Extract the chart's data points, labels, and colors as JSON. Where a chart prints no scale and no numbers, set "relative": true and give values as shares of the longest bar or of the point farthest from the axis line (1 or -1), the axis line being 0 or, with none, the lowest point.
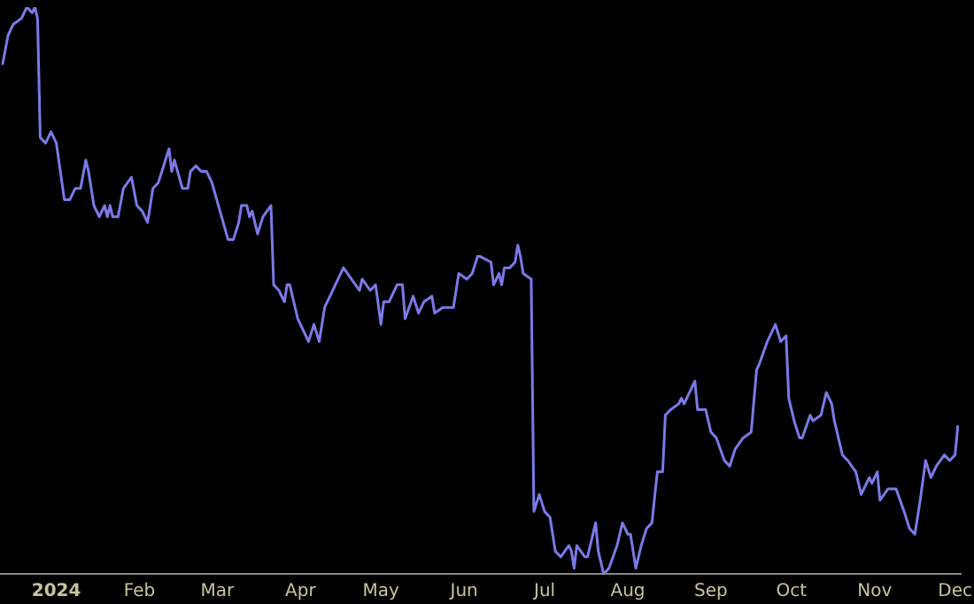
{
  "chart_data": {
    "type": "line",
    "relative": true,
    "marker": "none",
    "line_style": "solid",
    "grid": false,
    "legend": false,
    "tick_labels": "x",
    "xlim": [
      "2023-12-11",
      "2024-12-03"
    ],
    "xticks": [
      {
        "value": "2024-01-01",
        "label": "2024"
      },
      {
        "value": "2024-02-01",
        "label": "Feb"
      },
      {
        "value": "2024-03-01",
        "label": "Mar"
      },
      {
        "value": "2024-04-01",
        "label": "Apr"
      },
      {
        "value": "2024-05-01",
        "label": "May"
      },
      {
        "value": "2024-06-01",
        "label": "Jun"
      },
      {
        "value": "2024-07-01",
        "label": "Jul"
      },
      {
        "value": "2024-08-01",
        "label": "Aug"
      },
      {
        "value": "2024-09-01",
        "label": "Sep"
      },
      {
        "value": "2024-10-01",
        "label": "Oct"
      },
      {
        "value": "2024-11-01",
        "label": "Nov"
      },
      {
        "value": "2024-12-01",
        "label": "Dec"
      }
    ],
    "x": [
      "2023-12-12",
      "2023-12-14",
      "2023-12-16",
      "2023-12-19",
      "2023-12-21",
      "2023-12-23",
      "2023-12-24",
      "2023-12-25",
      "2023-12-26",
      "2023-12-28",
      "2023-12-30",
      "2024-01-01",
      "2024-01-04",
      "2024-01-06",
      "2024-01-08",
      "2024-01-10",
      "2024-01-12",
      "2024-01-13",
      "2024-01-15",
      "2024-01-17",
      "2024-01-19",
      "2024-01-20",
      "2024-01-21",
      "2024-01-22",
      "2024-01-24",
      "2024-01-26",
      "2024-01-29",
      "2024-01-31",
      "2024-02-02",
      "2024-02-04",
      "2024-02-06",
      "2024-02-08",
      "2024-02-10",
      "2024-02-12",
      "2024-02-13",
      "2024-02-14",
      "2024-02-17",
      "2024-02-19",
      "2024-02-20",
      "2024-02-22",
      "2024-02-24",
      "2024-02-26",
      "2024-02-28",
      "2024-03-02",
      "2024-03-05",
      "2024-03-07",
      "2024-03-09",
      "2024-03-10",
      "2024-03-12",
      "2024-03-13",
      "2024-03-14",
      "2024-03-16",
      "2024-03-18",
      "2024-03-21",
      "2024-03-22",
      "2024-03-24",
      "2024-03-26",
      "2024-03-27",
      "2024-03-28",
      "2024-03-31",
      "2024-04-04",
      "2024-04-06",
      "2024-04-08",
      "2024-04-10",
      "2024-04-12",
      "2024-04-14",
      "2024-04-17",
      "2024-04-20",
      "2024-04-23",
      "2024-04-24",
      "2024-04-27",
      "2024-04-29",
      "2024-05-01",
      "2024-05-02",
      "2024-05-04",
      "2024-05-07",
      "2024-05-09",
      "2024-05-10",
      "2024-05-13",
      "2024-05-15",
      "2024-05-17",
      "2024-05-20",
      "2024-05-21",
      "2024-05-24",
      "2024-05-28",
      "2024-05-30",
      "2024-06-02",
      "2024-06-04",
      "2024-06-06",
      "2024-06-07",
      "2024-06-11",
      "2024-06-12",
      "2024-06-14",
      "2024-06-15",
      "2024-06-16",
      "2024-06-18",
      "2024-06-20",
      "2024-06-21",
      "2024-06-22",
      "2024-06-23",
      "2024-06-26",
      "2024-06-27",
      "2024-06-29",
      "2024-07-01",
      "2024-07-03",
      "2024-07-05",
      "2024-07-07",
      "2024-07-10",
      "2024-07-11",
      "2024-07-12",
      "2024-07-13",
      "2024-07-16",
      "2024-07-17",
      "2024-07-20",
      "2024-07-21",
      "2024-07-23",
      "2024-07-25",
      "2024-07-28",
      "2024-07-30",
      "2024-08-01",
      "2024-08-02",
      "2024-08-04",
      "2024-08-06",
      "2024-08-08",
      "2024-08-10",
      "2024-08-12",
      "2024-08-14",
      "2024-08-15",
      "2024-08-17",
      "2024-08-20",
      "2024-08-21",
      "2024-08-22",
      "2024-08-24",
      "2024-08-26",
      "2024-08-27",
      "2024-08-30",
      "2024-09-01",
      "2024-09-03",
      "2024-09-06",
      "2024-09-08",
      "2024-09-10",
      "2024-09-13",
      "2024-09-16",
      "2024-09-18",
      "2024-09-19",
      "2024-09-22",
      "2024-09-25",
      "2024-09-27",
      "2024-09-29",
      "2024-09-30",
      "2024-10-02",
      "2024-10-04",
      "2024-10-05",
      "2024-10-08",
      "2024-10-09",
      "2024-10-12",
      "2024-10-14",
      "2024-10-16",
      "2024-10-17",
      "2024-10-20",
      "2024-10-22",
      "2024-10-25",
      "2024-10-27",
      "2024-10-30",
      "2024-10-31",
      "2024-11-02",
      "2024-11-03",
      "2024-11-06",
      "2024-11-08",
      "2024-11-09",
      "2024-11-12",
      "2024-11-14",
      "2024-11-16",
      "2024-11-18",
      "2024-11-20",
      "2024-11-22",
      "2024-11-24",
      "2024-11-27",
      "2024-11-29",
      "2024-12-01",
      "2024-12-02"
    ],
    "series": [
      {
        "color": "#7a7ae8",
        "values": [
          0.9,
          0.95,
          0.97,
          0.98,
          1.0,
          0.99,
          1.0,
          0.98,
          0.77,
          0.76,
          0.78,
          0.76,
          0.66,
          0.66,
          0.68,
          0.68,
          0.73,
          0.71,
          0.65,
          0.63,
          0.65,
          0.63,
          0.65,
          0.63,
          0.63,
          0.68,
          0.7,
          0.65,
          0.64,
          0.62,
          0.68,
          0.69,
          0.72,
          0.75,
          0.71,
          0.73,
          0.68,
          0.68,
          0.71,
          0.72,
          0.71,
          0.71,
          0.69,
          0.64,
          0.59,
          0.59,
          0.62,
          0.65,
          0.65,
          0.63,
          0.64,
          0.6,
          0.63,
          0.65,
          0.51,
          0.5,
          0.48,
          0.51,
          0.51,
          0.45,
          0.41,
          0.44,
          0.41,
          0.47,
          0.49,
          0.51,
          0.54,
          0.52,
          0.5,
          0.52,
          0.5,
          0.51,
          0.44,
          0.48,
          0.48,
          0.51,
          0.51,
          0.45,
          0.49,
          0.46,
          0.48,
          0.49,
          0.46,
          0.47,
          0.47,
          0.53,
          0.52,
          0.53,
          0.56,
          0.56,
          0.55,
          0.51,
          0.53,
          0.51,
          0.54,
          0.54,
          0.55,
          0.58,
          0.56,
          0.53,
          0.52,
          0.11,
          0.14,
          0.11,
          0.1,
          0.04,
          0.03,
          0.05,
          0.04,
          0.01,
          0.05,
          0.03,
          0.03,
          0.09,
          0.04,
          0.0,
          0.01,
          0.05,
          0.09,
          0.07,
          0.07,
          0.01,
          0.05,
          0.08,
          0.09,
          0.18,
          0.18,
          0.28,
          0.29,
          0.3,
          0.31,
          0.3,
          0.32,
          0.34,
          0.29,
          0.29,
          0.25,
          0.24,
          0.2,
          0.19,
          0.22,
          0.24,
          0.25,
          0.36,
          0.37,
          0.41,
          0.44,
          0.41,
          0.42,
          0.31,
          0.27,
          0.24,
          0.24,
          0.28,
          0.27,
          0.28,
          0.32,
          0.3,
          0.27,
          0.21,
          0.2,
          0.18,
          0.14,
          0.17,
          0.16,
          0.18,
          0.13,
          0.15,
          0.15,
          0.15,
          0.11,
          0.08,
          0.07,
          0.13,
          0.2,
          0.17,
          0.19,
          0.21,
          0.2,
          0.21,
          0.26
        ]
      }
    ]
  }
}
